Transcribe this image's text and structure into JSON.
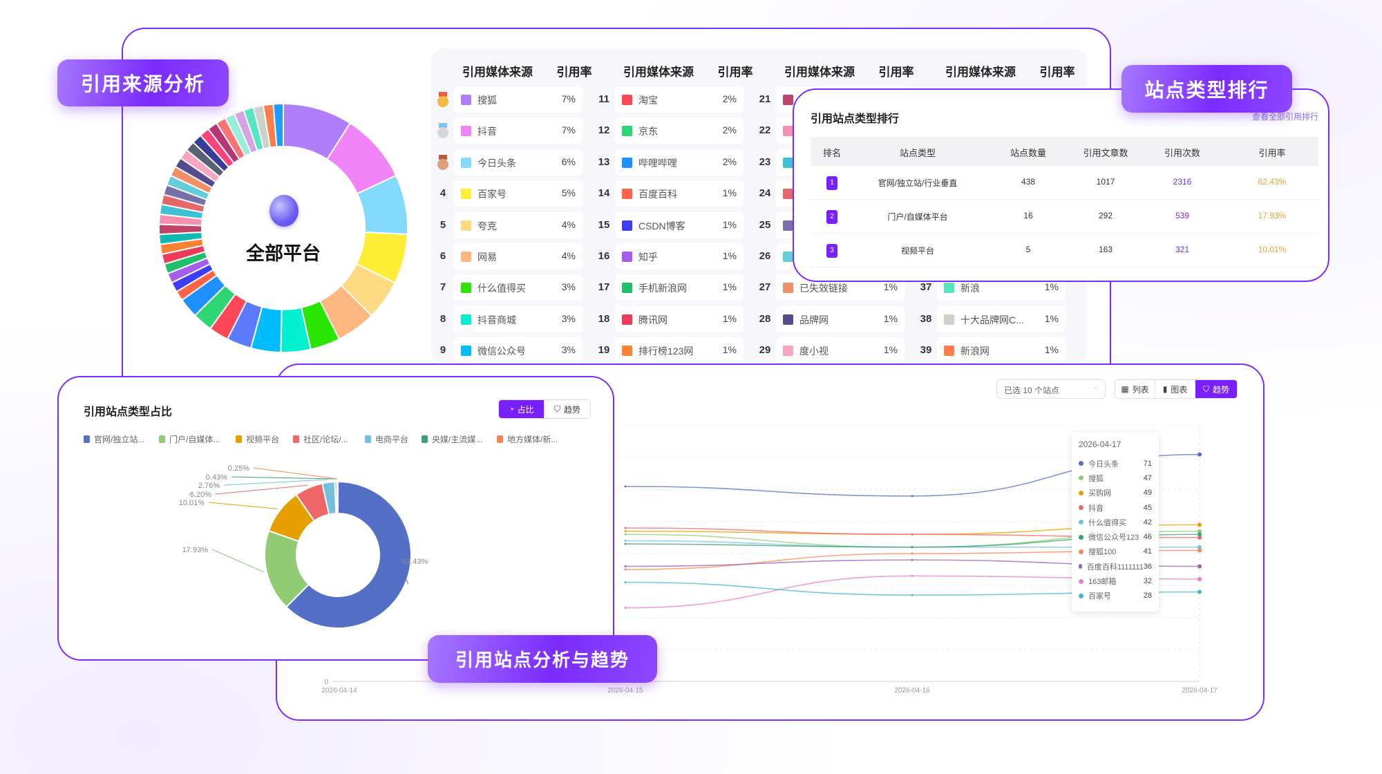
{
  "labels": {
    "source_analysis": "引用来源分析",
    "site_type_rank": "站点类型排行",
    "site_analysis_trend": "引用站点分析与趋势"
  },
  "source_donut": {
    "center_label": "全部平台",
    "slice_colors": [
      "#B07EFB",
      "#F183F8",
      "#84DAFD",
      "#FCEE34",
      "#FDD982",
      "#FDB880",
      "#2AE500",
      "#00F0D0",
      "#00BCFD",
      "#5B7BFF",
      "#FF4757",
      "#2ED573",
      "#1E90FF",
      "#FF6348",
      "#3D3DF5",
      "#A55EEA",
      "#20BF6B",
      "#EB3B5A",
      "#FA8231",
      "#0FB9B1",
      "#C0436A",
      "#F78FB3",
      "#3DC1D3",
      "#E66767",
      "#786FA6",
      "#63CDDA",
      "#F19066",
      "#574B90",
      "#F8A5C2",
      "#596275",
      "#3B3B98",
      "#FC427B",
      "#B33771",
      "#FD7272",
      "#9AECDB",
      "#D6A2E8",
      "#55E6C1",
      "#CAD3C8",
      "#FC7D4A",
      "#1E9BFF"
    ],
    "slice_values": [
      7,
      7,
      6,
      5,
      4,
      4,
      3,
      3,
      3,
      2.5,
      2,
      2,
      2,
      1,
      1,
      1,
      1,
      1,
      1,
      1,
      1,
      1,
      1,
      1,
      1,
      1,
      1,
      1,
      1,
      1,
      1,
      1,
      1,
      1,
      1,
      1,
      1,
      1,
      1,
      1
    ]
  },
  "media_table": {
    "header_source": "引用媒体来源",
    "header_rate": "引用率",
    "groups": [
      {
        "rows": [
          {
            "rank": "1",
            "medal": "gold",
            "name": "搜狐",
            "rate": "7%",
            "color": "#B07EFB"
          },
          {
            "rank": "2",
            "medal": "silver",
            "name": "抖音",
            "rate": "7%",
            "color": "#F183F8"
          },
          {
            "rank": "3",
            "medal": "bronze",
            "name": "今日头条",
            "rate": "6%",
            "color": "#84DAFD"
          },
          {
            "rank": "4",
            "name": "百家号",
            "rate": "5%",
            "color": "#FCEE34"
          },
          {
            "rank": "5",
            "name": "夸克",
            "rate": "4%",
            "color": "#FDD982"
          },
          {
            "rank": "6",
            "name": "网易",
            "rate": "4%",
            "color": "#FDB880"
          },
          {
            "rank": "7",
            "name": "什么值得买",
            "rate": "3%",
            "color": "#2AE500"
          },
          {
            "rank": "8",
            "name": "抖音商城",
            "rate": "3%",
            "color": "#00F0D0"
          },
          {
            "rank": "9",
            "name": "微信公众号",
            "rate": "3%",
            "color": "#00BCFD"
          }
        ]
      },
      {
        "rows": [
          {
            "rank": "11",
            "name": "淘宝",
            "rate": "2%",
            "color": "#FF4757"
          },
          {
            "rank": "12",
            "name": "京东",
            "rate": "2%",
            "color": "#2ED573"
          },
          {
            "rank": "13",
            "name": "哔哩哔哩",
            "rate": "2%",
            "color": "#1E90FF"
          },
          {
            "rank": "14",
            "name": "百度百科",
            "rate": "1%",
            "color": "#FF6348"
          },
          {
            "rank": "15",
            "name": "CSDN博客",
            "rate": "1%",
            "color": "#3D3DF5"
          },
          {
            "rank": "16",
            "name": "知乎",
            "rate": "1%",
            "color": "#A55EEA"
          },
          {
            "rank": "17",
            "name": "手机新浪网",
            "rate": "1%",
            "color": "#20BF6B"
          },
          {
            "rank": "18",
            "name": "腾讯网",
            "rate": "1%",
            "color": "#EB3B5A"
          },
          {
            "rank": "19",
            "name": "排行榜123网",
            "rate": "1%",
            "color": "#FA8231"
          }
        ]
      },
      {
        "rows": [
          {
            "rank": "21",
            "color": "#C0436A"
          },
          {
            "rank": "22",
            "color": "#F78FB3"
          },
          {
            "rank": "23",
            "color": "#3DC1D3"
          },
          {
            "rank": "24",
            "color": "#E66767"
          },
          {
            "rank": "25",
            "color": "#786FA6"
          },
          {
            "rank": "26",
            "color": "#63CDDA"
          },
          {
            "rank": "27",
            "name": "已失效链接",
            "rate": "1%",
            "color": "#F19066"
          },
          {
            "rank": "28",
            "name": "品牌网",
            "rate": "1%",
            "color": "#574B90"
          },
          {
            "rank": "29",
            "name": "度小视",
            "rate": "1%",
            "color": "#F8A5C2"
          }
        ]
      },
      {
        "rows": [
          {},
          {},
          {},
          {},
          {},
          {},
          {
            "rank": "37",
            "name": "新浪",
            "rate": "1%",
            "color": "#55E6C1"
          },
          {
            "rank": "38",
            "name": "十大品牌网C...",
            "rate": "1%",
            "color": "#CAD3C8"
          },
          {
            "rank": "39",
            "name": "新浪网",
            "rate": "1%",
            "color": "#FC7D4A"
          }
        ]
      }
    ]
  },
  "site_type_card": {
    "title": "引用站点类型排行",
    "view_all": "查看全部引用排行",
    "headers": [
      "排名",
      "站点类型",
      "站点数量",
      "引用文章数",
      "引用次数",
      "引用率"
    ],
    "rows": [
      {
        "rank": "1",
        "type": "官网/独立站/行业垂直",
        "sites": "438",
        "articles": "1017",
        "citations": "2316",
        "rate": "62.43%"
      },
      {
        "rank": "2",
        "type": "门户/自媒体平台",
        "sites": "16",
        "articles": "292",
        "citations": "539",
        "rate": "17.93%"
      },
      {
        "rank": "3",
        "type": "视频平台",
        "sites": "5",
        "articles": "163",
        "citations": "321",
        "rate": "10.01%"
      }
    ],
    "accent": "#7a1fff",
    "citation_color": "#6b2cff",
    "rate_color": "#f0a030"
  },
  "pie_card": {
    "title": "引用站点类型占比",
    "toggle": {
      "share": "占比",
      "trend": "趋势",
      "active": "share"
    },
    "legend": [
      {
        "name": "官网/独立站...",
        "color": "#5470C6"
      },
      {
        "name": "门户/自媒体...",
        "color": "#91CC75"
      },
      {
        "name": "视频平台",
        "color": "#E5A000"
      },
      {
        "name": "社区/论坛/...",
        "color": "#EE6666"
      },
      {
        "name": "电商平台",
        "color": "#73C0DE"
      },
      {
        "name": "央媒/主流媒...",
        "color": "#3BA272"
      },
      {
        "name": "地方媒体/新...",
        "color": "#FC8452"
      }
    ]
  },
  "chart_data": [
    {
      "type": "pie",
      "title": "引用站点类型占比",
      "donut": true,
      "categories": [
        "官网/独立站...",
        "门户/自媒体...",
        "视频平台",
        "社区/论坛/...",
        "电商平台",
        "央媒/主流媒...",
        "地方媒体/新..."
      ],
      "values": [
        62.43,
        17.93,
        10.01,
        6.2,
        2.76,
        0.43,
        0.25
      ],
      "data_labels": [
        "62.43%",
        "17.93%",
        "10.01%",
        "6.20%",
        "2.76%",
        "0.43%",
        "0.25%"
      ],
      "colors": [
        "#5470C6",
        "#91CC75",
        "#E5A000",
        "#EE6666",
        "#73C0DE",
        "#3BA272",
        "#FC8452"
      ],
      "legend": "top"
    },
    {
      "type": "line",
      "x": [
        "2026-04-14",
        "2026-04-15",
        "2026-04-16",
        "2026-04-17"
      ],
      "ylim": [
        0,
        80
      ],
      "y_tick_visible": "0",
      "grid": true,
      "series": [
        {
          "name": "今日头条",
          "color": "#5470C6",
          "values": [
            null,
            61,
            58,
            71
          ]
        },
        {
          "name": "搜狐",
          "color": "#91CC75",
          "values": [
            null,
            46,
            42,
            47
          ]
        },
        {
          "name": "买购网",
          "color": "#E5A000",
          "values": [
            null,
            47,
            46,
            49
          ]
        },
        {
          "name": "抖音",
          "color": "#EE6666",
          "values": [
            null,
            48,
            46,
            45
          ]
        },
        {
          "name": "什么值得买",
          "color": "#73C0DE",
          "values": [
            null,
            44,
            42,
            42
          ]
        },
        {
          "name": "微信公众号123",
          "color": "#3BA272",
          "values": [
            null,
            43,
            42,
            46
          ]
        },
        {
          "name": "搜狐100",
          "color": "#FC8452",
          "values": [
            null,
            35,
            40,
            41
          ]
        },
        {
          "name": "百度百科1111111",
          "color": "#9A60B4",
          "values": [
            null,
            36,
            38,
            36
          ]
        },
        {
          "name": "163邮箱",
          "color": "#EA7CCC",
          "values": [
            null,
            23,
            33,
            32
          ]
        },
        {
          "name": "百家号",
          "color": "#40B5D0",
          "values": [
            null,
            31,
            27,
            28
          ]
        }
      ],
      "tooltip": {
        "date": "2026-04-17"
      }
    }
  ],
  "trend_controls": {
    "site_select": "已选 10 个站点",
    "views": {
      "list": "列表",
      "chart": "图表",
      "trend": "趋势",
      "active": "trend"
    }
  }
}
